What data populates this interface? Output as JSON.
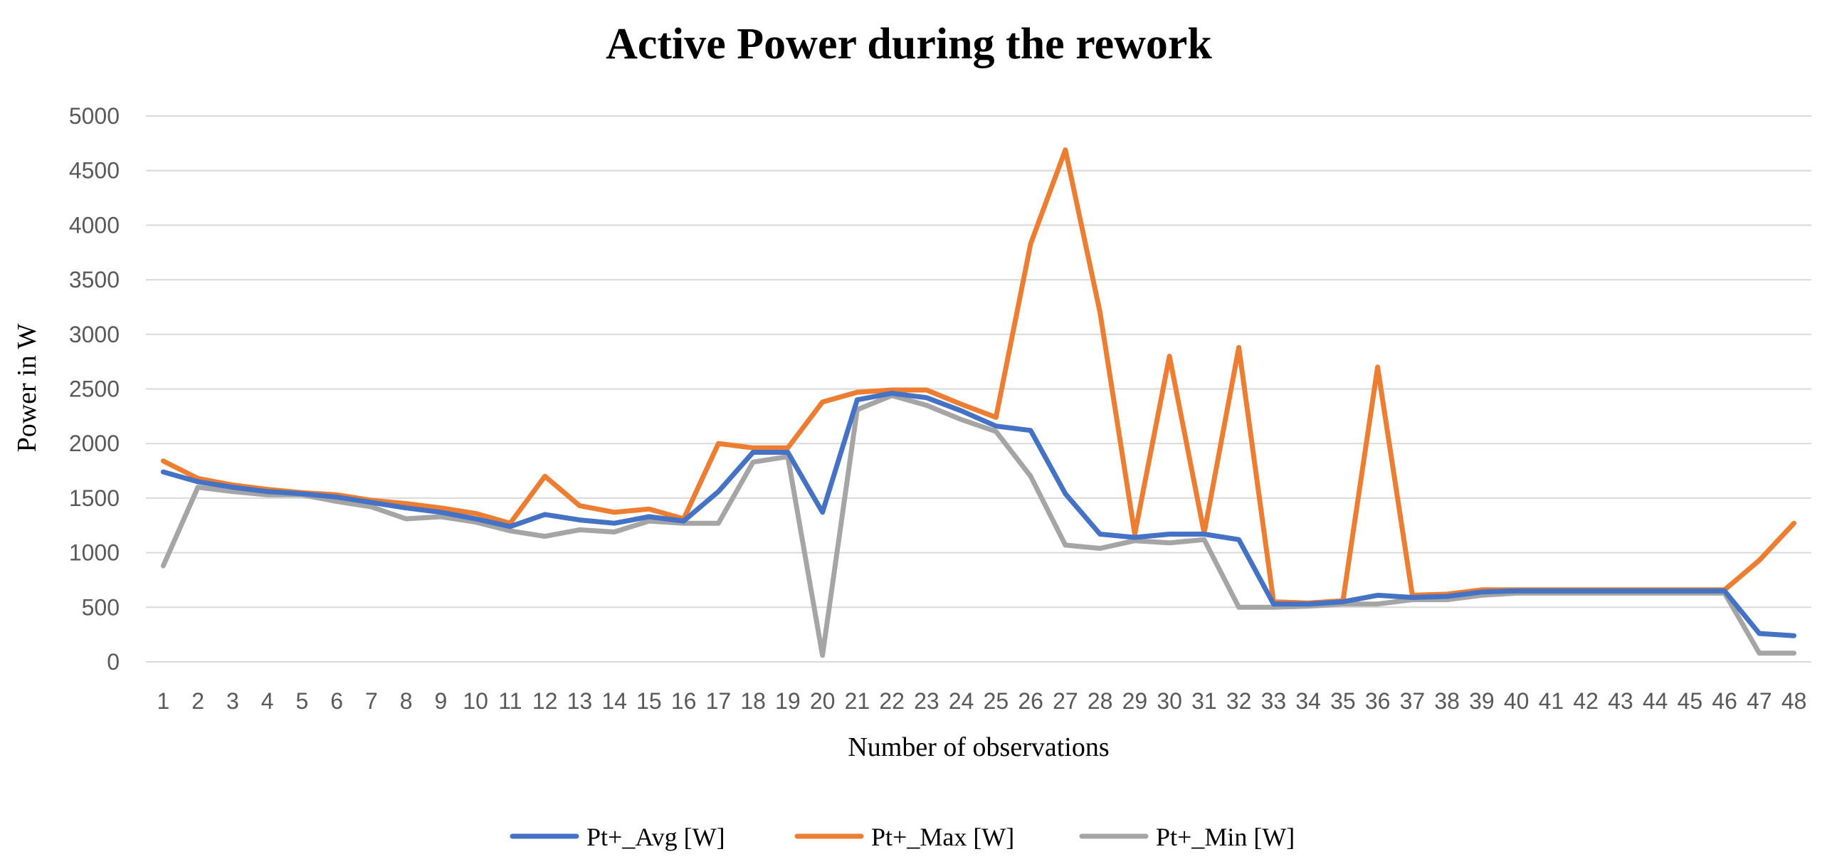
{
  "chart_data": {
    "type": "line",
    "title": "Active Power during the rework",
    "xlabel": "Number of observations",
    "ylabel": "Power in W",
    "ylim": [
      0,
      5000
    ],
    "yticks": [
      0,
      500,
      1000,
      1500,
      2000,
      2500,
      3000,
      3500,
      4000,
      4500,
      5000
    ],
    "grid": true,
    "legend_position": "bottom",
    "categories": [
      "1",
      "2",
      "3",
      "4",
      "5",
      "6",
      "7",
      "8",
      "9",
      "10",
      "11",
      "12",
      "13",
      "14",
      "15",
      "16",
      "17",
      "18",
      "19",
      "20",
      "21",
      "22",
      "23",
      "24",
      "25",
      "26",
      "27",
      "28",
      "29",
      "30",
      "31",
      "32",
      "33",
      "34",
      "35",
      "36",
      "37",
      "38",
      "39",
      "40",
      "41",
      "42",
      "43",
      "44",
      "45",
      "46",
      "47",
      "48"
    ],
    "series": [
      {
        "name": "Pt+_Avg [W]",
        "color": "#4472c4",
        "values": [
          1740,
          1650,
          1600,
          1560,
          1540,
          1510,
          1460,
          1410,
          1370,
          1310,
          1240,
          1350,
          1300,
          1270,
          1330,
          1290,
          1560,
          1920,
          1920,
          1370,
          2400,
          2460,
          2420,
          2300,
          2160,
          2120,
          1540,
          1170,
          1140,
          1170,
          1170,
          1120,
          530,
          530,
          550,
          610,
          590,
          600,
          640,
          650,
          650,
          650,
          650,
          650,
          650,
          650,
          260,
          240
        ]
      },
      {
        "name": "Pt+_Max [W]",
        "color": "#ed7d31",
        "values": [
          1840,
          1680,
          1620,
          1580,
          1550,
          1530,
          1480,
          1450,
          1410,
          1360,
          1270,
          1700,
          1430,
          1370,
          1400,
          1310,
          2000,
          1960,
          1960,
          2380,
          2470,
          2490,
          2490,
          2360,
          2240,
          3830,
          4690,
          3200,
          1170,
          2800,
          1180,
          2880,
          550,
          540,
          560,
          2700,
          610,
          620,
          660,
          660,
          660,
          660,
          660,
          660,
          660,
          660,
          930,
          1270
        ]
      },
      {
        "name": "Pt+_Min [W]",
        "color": "#a5a5a5",
        "values": [
          880,
          1600,
          1560,
          1530,
          1530,
          1470,
          1420,
          1310,
          1330,
          1280,
          1200,
          1150,
          1210,
          1190,
          1290,
          1270,
          1270,
          1830,
          1880,
          60,
          2310,
          2440,
          2350,
          2220,
          2110,
          1700,
          1070,
          1040,
          1110,
          1090,
          1120,
          500,
          500,
          510,
          530,
          530,
          570,
          570,
          610,
          630,
          630,
          630,
          630,
          630,
          630,
          630,
          80,
          80
        ]
      }
    ]
  }
}
